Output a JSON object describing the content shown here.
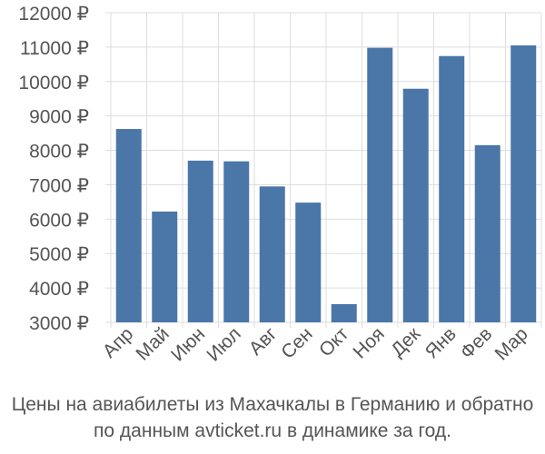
{
  "chart_data": {
    "type": "bar",
    "categories": [
      "Апр",
      "Май",
      "Июн",
      "Июл",
      "Авг",
      "Сен",
      "Окт",
      "Ноя",
      "Дек",
      "Янв",
      "Фев",
      "Мар"
    ],
    "values": [
      8620,
      6220,
      7700,
      7680,
      6950,
      6480,
      3530,
      10980,
      9790,
      10740,
      8150,
      11050
    ],
    "ylim": [
      3000,
      12000
    ],
    "yticks": [
      3000,
      4000,
      5000,
      6000,
      7000,
      8000,
      9000,
      10000,
      11000,
      12000
    ],
    "ytick_suffix": " ₽",
    "grid": true,
    "bar_color": "#4a76a8",
    "grid_color": "#dddddd"
  },
  "caption": {
    "line1": "Цены на авиабилеты из Махачкалы в Германию и обратно",
    "line2": "по данным avticket.ru в динамике за год."
  }
}
